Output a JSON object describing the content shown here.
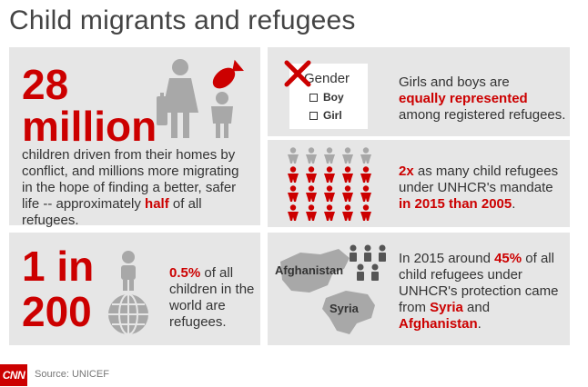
{
  "title": "Child migrants and refugees",
  "panel1": {
    "big_number": "28",
    "big_unit": "million",
    "text_1": "children driven from their homes by conflict, and millions more migrating in the hope of finding a better, safer life -- approximately ",
    "text_half": "half",
    "text_2": " of all refugees."
  },
  "panel2": {
    "gender_label": "Gender",
    "option_boy": "Boy",
    "option_girl": "Girl",
    "text_1": "Girls and boys are",
    "text_highlight": "equally represented",
    "text_2": "among registered refugees."
  },
  "panel3": {
    "multiplier": "2x",
    "text_1": " as many child refugees under UNHCR's mandate ",
    "text_highlight": "in 2015 than 2005",
    "text_2": "."
  },
  "panel4": {
    "big_line1": "1 in",
    "big_line2": "200",
    "percent": "0.5%",
    "text_1": " of all children in the world are refugees."
  },
  "panel5": {
    "label_afghanistan": "Afghanistan",
    "label_syria": "Syria",
    "text_1": "In 2015 around ",
    "percent": "45%",
    "text_2": " of all child refugees under UNHCR's protection came from ",
    "country_1": "Syria",
    "text_and": " and ",
    "country_2": "Afghanistan",
    "text_3": "."
  },
  "footer": {
    "logo": "CNN",
    "source": "Source: UNICEF"
  },
  "colors": {
    "accent_red": "#cc0000",
    "panel_gray": "#e6e6e6",
    "icon_gray": "#a8a8a8",
    "text_dark": "#333333"
  }
}
